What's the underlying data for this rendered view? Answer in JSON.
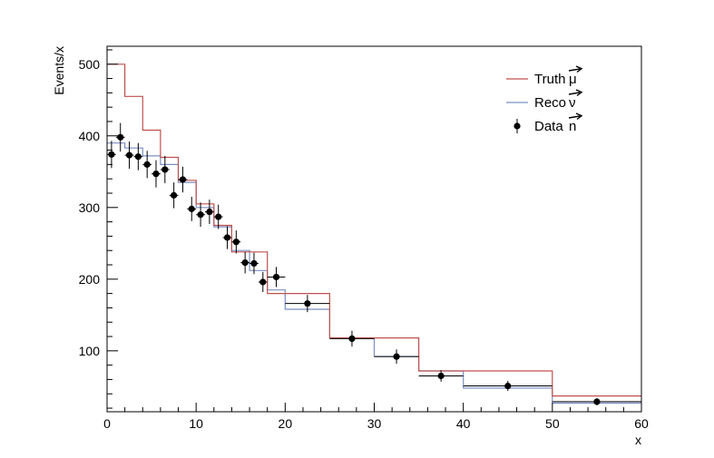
{
  "chart_data": {
    "type": "histogram",
    "title": "",
    "xlabel": "x",
    "ylabel": "Events/x",
    "xlim": [
      0,
      60
    ],
    "ylim": [
      15,
      525
    ],
    "x_ticks": [
      0,
      10,
      20,
      30,
      40,
      50,
      60
    ],
    "y_ticks": [
      100,
      200,
      300,
      400,
      500
    ],
    "grid": false,
    "legend_position": "top-right",
    "bin_edges": [
      0,
      2,
      4,
      6,
      8,
      10,
      12,
      14,
      16,
      18,
      20,
      25,
      30,
      35,
      40,
      50,
      60
    ],
    "truth": {
      "name": "Truth",
      "symbol": "μ",
      "color": "#c0504d",
      "values": [
        500,
        455,
        408,
        370,
        338,
        305,
        275,
        238,
        238,
        180,
        180,
        118,
        118,
        72,
        72,
        37
      ]
    },
    "reco": {
      "name": "Reco",
      "symbol": "ν",
      "color": "#7b8fc4",
      "values": [
        390,
        383,
        372,
        360,
        335,
        300,
        273,
        240,
        212,
        185,
        158,
        118,
        92,
        72,
        48,
        27
      ]
    },
    "data_points": {
      "name": "Data",
      "symbol": "n",
      "color": "#000000",
      "points": [
        {
          "x": 0.5,
          "y": 374,
          "yerr": 19,
          "xerr": 0.5
        },
        {
          "x": 1.5,
          "y": 398,
          "yerr": 20,
          "xerr": 0.5
        },
        {
          "x": 2.5,
          "y": 373,
          "yerr": 19,
          "xerr": 0.5
        },
        {
          "x": 3.5,
          "y": 371,
          "yerr": 19,
          "xerr": 0.5
        },
        {
          "x": 4.5,
          "y": 360,
          "yerr": 19,
          "xerr": 0.5
        },
        {
          "x": 5.5,
          "y": 347,
          "yerr": 19,
          "xerr": 0.5
        },
        {
          "x": 6.5,
          "y": 353,
          "yerr": 19,
          "xerr": 0.5
        },
        {
          "x": 7.5,
          "y": 317,
          "yerr": 18,
          "xerr": 0.5
        },
        {
          "x": 8.5,
          "y": 339,
          "yerr": 18,
          "xerr": 0.5
        },
        {
          "x": 9.5,
          "y": 298,
          "yerr": 17,
          "xerr": 0.5
        },
        {
          "x": 10.5,
          "y": 290,
          "yerr": 17,
          "xerr": 0.5
        },
        {
          "x": 11.5,
          "y": 294,
          "yerr": 17,
          "xerr": 0.5
        },
        {
          "x": 12.5,
          "y": 287,
          "yerr": 17,
          "xerr": 0.5
        },
        {
          "x": 13.5,
          "y": 258,
          "yerr": 16,
          "xerr": 0.5
        },
        {
          "x": 14.5,
          "y": 252,
          "yerr": 16,
          "xerr": 0.5
        },
        {
          "x": 15.5,
          "y": 223,
          "yerr": 15,
          "xerr": 0.5
        },
        {
          "x": 16.5,
          "y": 222,
          "yerr": 15,
          "xerr": 0.5
        },
        {
          "x": 17.5,
          "y": 196,
          "yerr": 14,
          "xerr": 0.5
        },
        {
          "x": 19.0,
          "y": 203,
          "yerr": 14,
          "xerr": 1.0
        },
        {
          "x": 22.5,
          "y": 166,
          "yerr": 12,
          "xerr": 2.5
        },
        {
          "x": 27.5,
          "y": 117,
          "yerr": 11,
          "xerr": 2.5
        },
        {
          "x": 32.5,
          "y": 92,
          "yerr": 10,
          "xerr": 2.5
        },
        {
          "x": 37.5,
          "y": 65,
          "yerr": 8,
          "xerr": 2.5
        },
        {
          "x": 45.0,
          "y": 51,
          "yerr": 7,
          "xerr": 5.0
        },
        {
          "x": 55.0,
          "y": 29,
          "yerr": 5,
          "xerr": 5.0
        }
      ]
    }
  }
}
